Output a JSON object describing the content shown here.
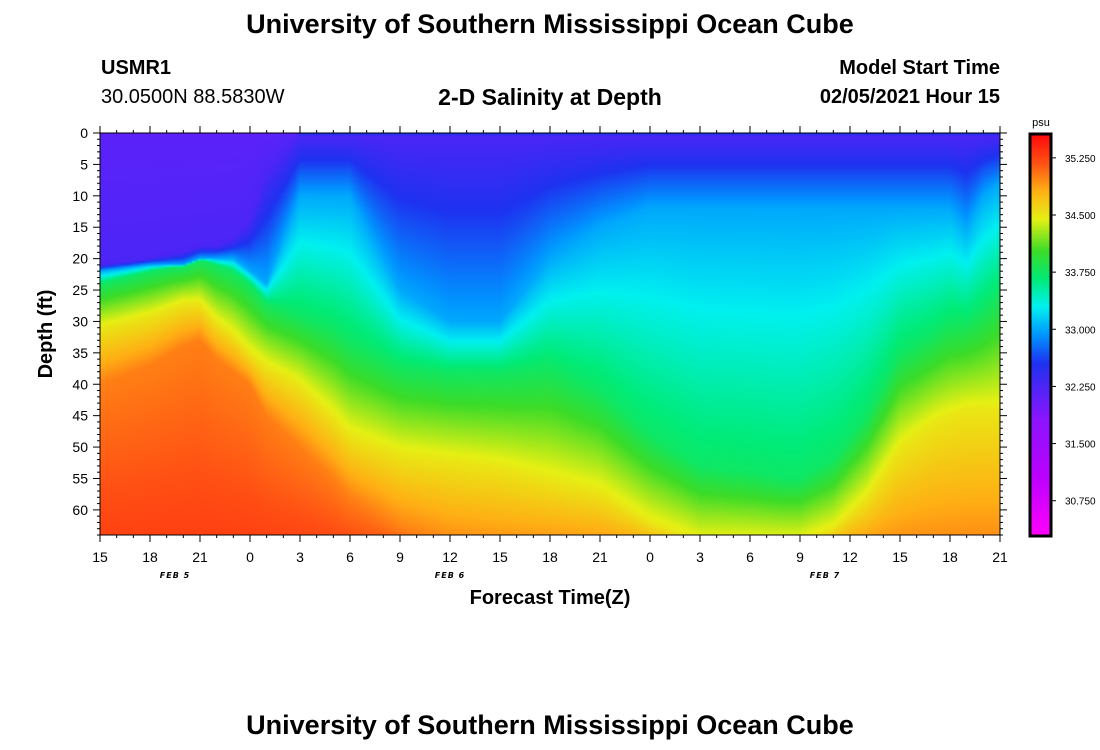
{
  "page": {
    "title_top": "University of Southern Mississippi Ocean Cube",
    "title_bottom": "University of Southern Mississippi Ocean Cube",
    "station_id": "USMR1",
    "station_coords": "30.0500N 88.5830W",
    "model_start_label": "Model Start Time",
    "model_start_value": "02/05/2021 Hour 15"
  },
  "chart_data": {
    "type": "heatmap",
    "title": "2-D Salinity at Depth",
    "xlabel": "Forecast Time(Z)",
    "ylabel": "Depth (ft)",
    "x_range_hours": [
      0,
      54
    ],
    "y_range": [
      0,
      64
    ],
    "y_ticks": [
      0,
      5,
      10,
      15,
      20,
      25,
      30,
      35,
      40,
      45,
      50,
      55,
      60
    ],
    "x_tick_labels": [
      "15",
      "18",
      "21",
      "0",
      "3",
      "6",
      "9",
      "12",
      "15",
      "18",
      "21",
      "0",
      "3",
      "6",
      "9",
      "12",
      "15",
      "18",
      "21"
    ],
    "date_labels": [
      {
        "label": "FEB 5",
        "hour": 4.5
      },
      {
        "label": "FEB 6",
        "hour": 21
      },
      {
        "label": "FEB 7",
        "hour": 43.5
      }
    ],
    "colorbar": {
      "unit": "psu",
      "min": 30.3,
      "max": 35.55,
      "tick_values": [
        35.25,
        34.5,
        33.75,
        33.0,
        32.25,
        31.5,
        30.75
      ],
      "tick_labels": [
        "35.250",
        "34.500",
        "33.750",
        "33.000",
        "32.250",
        "31.500",
        "30.750"
      ]
    },
    "surface_salinity_psu": 32.9,
    "bottom_salinity_psu": 35.0,
    "isohaline_depths_ft": {
      "time_hours": [
        0,
        3,
        5,
        6,
        7,
        8,
        9,
        10,
        12,
        14,
        15,
        18,
        21,
        24,
        27,
        30,
        33,
        36,
        39,
        41,
        42,
        44,
        46,
        48,
        50,
        51,
        52,
        53,
        54
      ],
      "s_32_25": [
        21,
        20,
        19,
        18,
        18,
        17,
        14,
        6,
        0,
        0,
        0,
        0,
        0,
        0,
        0,
        0,
        0,
        0,
        0,
        0,
        0,
        0,
        0,
        0,
        0,
        0,
        0,
        0,
        0
      ],
      "s_33_00": [
        22,
        21,
        21,
        20,
        20,
        20,
        22,
        24,
        10,
        10,
        10,
        25,
        30,
        30,
        20,
        15,
        12,
        12,
        12,
        12,
        12,
        12,
        12,
        12,
        12,
        12,
        15,
        10,
        8
      ],
      "s_33_75": [
        24,
        22,
        21,
        20,
        21,
        22,
        24,
        27,
        29,
        31,
        33,
        37,
        38,
        38,
        37,
        41,
        48,
        53,
        54,
        55,
        55,
        52,
        45,
        35,
        32,
        30,
        30,
        28,
        25
      ],
      "s_34_50": [
        31,
        29,
        27,
        27,
        30,
        32,
        35,
        37,
        40,
        45,
        48,
        51,
        52,
        53,
        55,
        57,
        62,
        65,
        65,
        65,
        65,
        63,
        58,
        50,
        46,
        45,
        44,
        44,
        44
      ],
      "s_35_00": [
        40,
        37,
        34,
        33,
        36,
        38,
        40,
        45,
        50,
        55,
        58,
        63,
        66,
        67,
        67,
        67,
        67,
        67,
        67,
        67,
        67,
        67,
        67,
        67,
        67,
        67,
        67,
        67,
        67
      ]
    }
  }
}
